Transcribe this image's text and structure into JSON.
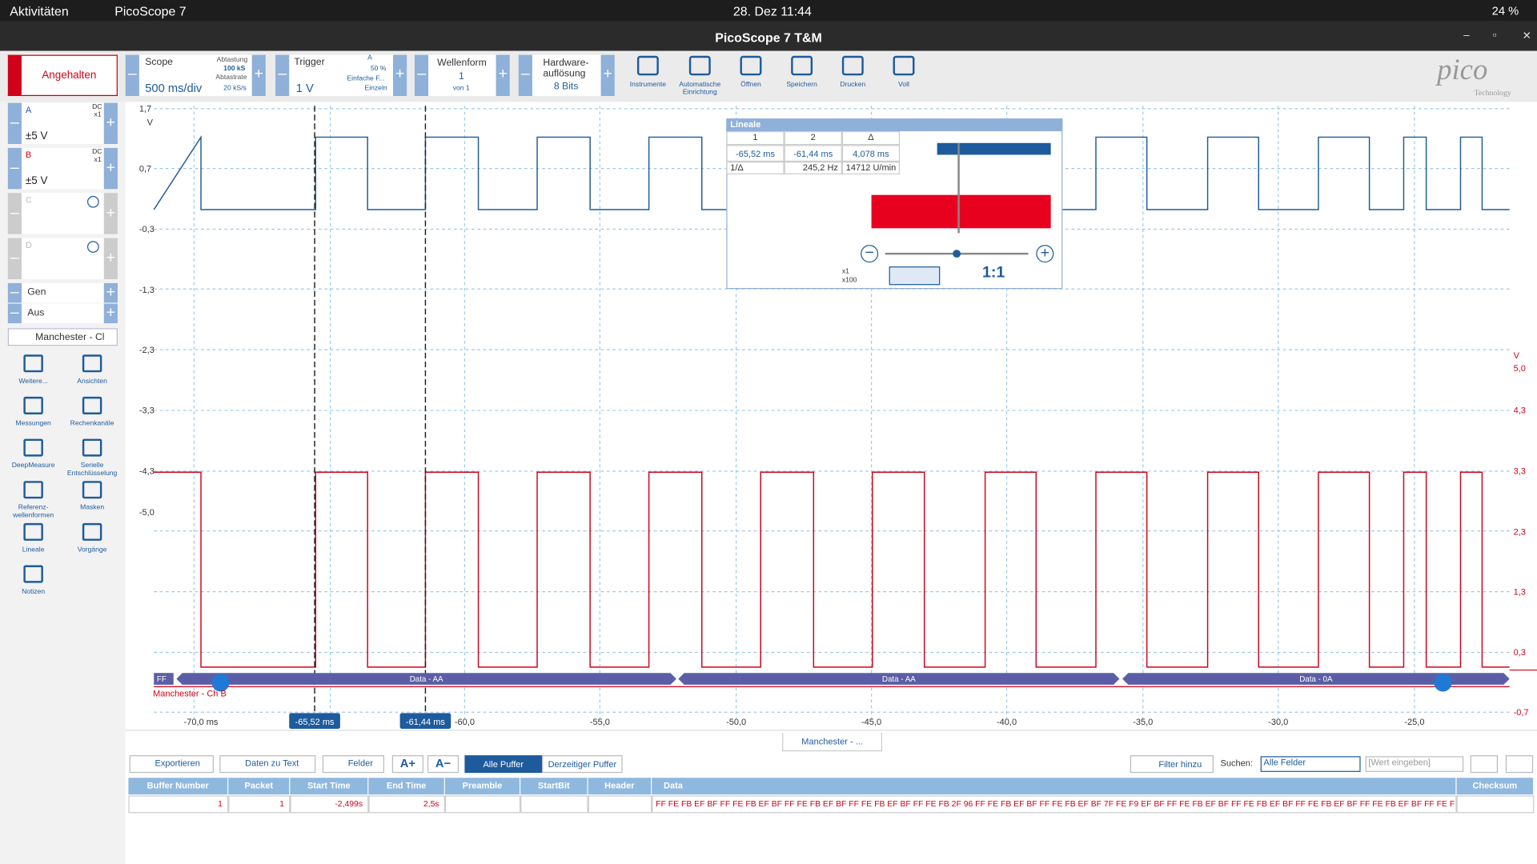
{
  "topbar": {
    "activities": "Aktivitäten",
    "app": "PicoScope 7",
    "clock": "28. Dez  11:44",
    "battery": "24 %"
  },
  "window": {
    "title": "PicoScope 7 T&M"
  },
  "toolbar": {
    "run": "Angehalten",
    "scope": {
      "label": "Scope",
      "value": "500 ms/div",
      "sampling_label": "Abtastung",
      "sampling": "100 kS",
      "rate_label": "Abtastrate",
      "rate": "20 kS/s"
    },
    "trigger": {
      "label": "Trigger",
      "value": "1 V",
      "channel": "A",
      "level": "50 %",
      "type": "Einfache F...",
      "mode": "Einzeln"
    },
    "waveform": {
      "label": "Wellenform",
      "index": "1",
      "of": "von 1"
    },
    "resolution": {
      "label1": "Hardware-",
      "label2": "auflösung",
      "value": "8 Bits"
    },
    "tools": [
      "Instrumente",
      "Automatische Einrichtung",
      "Öffnen",
      "Speichern",
      "Drucken",
      "Voll"
    ],
    "logo": {
      "name": "pico",
      "tagline": "Technology"
    }
  },
  "sidebar": {
    "channels": [
      {
        "name": "A",
        "coupling": "DC",
        "probe": "x1",
        "range": "±5 V"
      },
      {
        "name": "B",
        "coupling": "DC",
        "probe": "x1",
        "range": "±5 V"
      },
      {
        "name": "C"
      },
      {
        "name": "D"
      }
    ],
    "generator": {
      "label": "Gen",
      "state": "Aus"
    },
    "decoder": "Manchester - Ch",
    "tools": [
      "Weitere...",
      "Ansichten",
      "Messungen",
      "Rechenkanäle",
      "DeepMeasure",
      "Serielle Entschlüsselung",
      "Referenz-wellenformen",
      "Masken",
      "Lineale",
      "Vorgänge",
      "Notizen"
    ]
  },
  "scope": {
    "left_unit": "V",
    "left_axis": [
      "1,7",
      "0,7",
      "-0,3",
      "-1,3",
      "-2,3",
      "-3,3",
      "-4,3",
      "-5,0"
    ],
    "right_unit": "V",
    "right_axis": [
      "5,0",
      "4,3",
      "3,3",
      "2,3",
      "1,3",
      "0,3",
      "-0,7"
    ],
    "x_axis": [
      "-70,0 ms",
      "-60,0",
      "-55,0",
      "-50,0",
      "-45,0",
      "-40,0",
      "-35,0",
      "-30,0",
      "-25,0"
    ],
    "rulers": [
      "-65,52 ms",
      "-61,44 ms"
    ],
    "decoder": {
      "start": "FF",
      "packets": [
        "Data - AA",
        "Data - AA",
        "Data - 0A"
      ],
      "channel": "Manchester - Ch B"
    }
  },
  "rulers_panel": {
    "title": "Lineale",
    "headers": [
      "1",
      "2",
      "Δ"
    ],
    "row1": [
      "-65,52 ms",
      "-61,44 ms",
      "4,078 ms"
    ],
    "row2": [
      "1/Δ",
      "245,2 Hz",
      "14712 U/min"
    ],
    "zoom_min": "x1",
    "zoom_max": "x100",
    "reset": "1:1"
  },
  "bottom": {
    "tab": "Manchester - ...",
    "buttons": [
      "Exportieren",
      "Daten zu Text",
      "Felder"
    ],
    "buffer_all": "Alle Puffer",
    "buffer_current": "Derzeitiger Puffer",
    "filter": "Filter hinzu",
    "search_label": "Suchen:",
    "search_field": "Alle Felder",
    "search_input": "[Wert eingeben]",
    "table": {
      "headers": [
        "Buffer Number",
        "Packet",
        "Start Time",
        "End Time",
        "Preamble",
        "StartBit",
        "Header",
        "Data",
        "Checksum"
      ],
      "row": {
        "buffer": "1",
        "packet": "1",
        "start": "-2,499s",
        "end": "2,5s",
        "data": "FF FE FB EF BF FF FE FB EF BF FF FE FB EF BF FF FE FB EF BF FF FE FB 2F 96 FF FE FB EF BF FF FE FB EF BF 7F FE F9 EF BF FF FE FB EF BF FF FE FB EF BF FF FE FB EF BF FF FE FB EF BF FF FE FB"
      }
    }
  }
}
